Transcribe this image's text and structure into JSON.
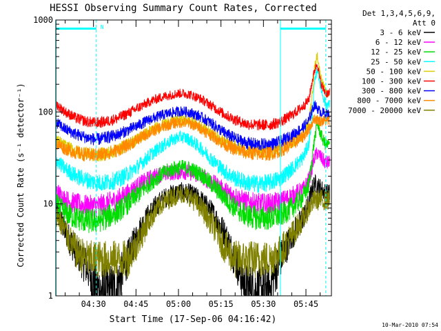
{
  "chart_data": {
    "type": "line",
    "title": "HESSI Observing Summary Count Rates, Corrected",
    "ylabel": "Corrected Count Rate (s⁻¹ detector⁻¹)",
    "xlabel": "Start Time (17-Sep-06 04:16:42)",
    "yscale": "log",
    "ylim": [
      1,
      1000
    ],
    "xlim": [
      "04:16:42",
      "05:54:00"
    ],
    "xticks": [
      "04:30",
      "04:45",
      "05:00",
      "05:15",
      "05:30",
      "05:45"
    ],
    "yticks": [
      "1",
      "10",
      "100",
      "1000"
    ],
    "grid": false,
    "legend_placement": "right",
    "legend_header": [
      "Det 1,3,4,5,6,9,",
      "Att 0"
    ],
    "footer": "10-Mar-2010 07:54",
    "night_bar_label": "N",
    "night_bars": [
      {
        "start": "04:16:42",
        "end": "04:31:00"
      },
      {
        "start": "05:36:00",
        "end": "05:52:00"
      }
    ],
    "series": [
      {
        "name": "3 - 6 keV",
        "color": "#000000",
        "x": [
          "04:16:42",
          "04:20",
          "04:24",
          "04:28",
          "04:31",
          "04:34",
          "04:38",
          "04:42",
          "04:46",
          "04:50",
          "04:54",
          "04:58",
          "05:01",
          "05:04",
          "05:08",
          "05:12",
          "05:16",
          "05:20",
          "05:24",
          "05:28",
          "05:32",
          "05:36",
          "05:40",
          "05:44",
          "05:46",
          "05:47",
          "05:48",
          "05:49",
          "05:50",
          "05:51",
          "05:52"
        ],
        "y": [
          9,
          5,
          3,
          2,
          1.2,
          1.1,
          1.2,
          2.5,
          5,
          8,
          11,
          13,
          13.5,
          13,
          11,
          8,
          5,
          2.5,
          1.2,
          1.1,
          1.2,
          2.5,
          4.5,
          7,
          10,
          14,
          17,
          16,
          15,
          14,
          13
        ]
      },
      {
        "name": "6 - 12 keV",
        "color": "#ff00ff",
        "x": [
          "04:16:42",
          "04:20",
          "04:24",
          "04:28",
          "04:31",
          "04:34",
          "04:38",
          "04:42",
          "04:46",
          "04:50",
          "04:54",
          "04:58",
          "05:01",
          "05:04",
          "05:08",
          "05:12",
          "05:16",
          "05:20",
          "05:24",
          "05:28",
          "05:32",
          "05:36",
          "05:40",
          "05:44",
          "05:46",
          "05:47",
          "05:48",
          "05:49",
          "05:50",
          "05:51",
          "05:52"
        ],
        "y": [
          14,
          11,
          10,
          9.5,
          9.5,
          10,
          11,
          13,
          16,
          19,
          21,
          22,
          22.5,
          22,
          20,
          17,
          14,
          12,
          10.5,
          10,
          10,
          10.5,
          12,
          14,
          18,
          24,
          32,
          36,
          33,
          30,
          28
        ]
      },
      {
        "name": "12 - 25 keV",
        "color": "#00dd00",
        "x": [
          "04:16:42",
          "04:20",
          "04:24",
          "04:28",
          "04:31",
          "04:34",
          "04:38",
          "04:42",
          "04:46",
          "04:50",
          "04:54",
          "04:58",
          "05:01",
          "05:04",
          "05:08",
          "05:12",
          "05:16",
          "05:20",
          "05:24",
          "05:28",
          "05:32",
          "05:36",
          "05:40",
          "05:44",
          "05:46",
          "05:47",
          "05:48",
          "05:49",
          "05:50",
          "05:51",
          "05:52"
        ],
        "y": [
          10,
          8,
          7,
          6.5,
          6.5,
          7,
          8,
          10,
          13,
          17,
          21,
          24,
          25,
          24,
          21,
          16,
          12,
          9,
          7.5,
          7,
          7,
          7.5,
          9,
          12,
          16,
          28,
          50,
          75,
          60,
          50,
          44
        ]
      },
      {
        "name": "25 - 50 keV",
        "color": "#00ffff",
        "x": [
          "04:16:42",
          "04:20",
          "04:24",
          "04:28",
          "04:31",
          "04:34",
          "04:38",
          "04:42",
          "04:46",
          "04:50",
          "04:54",
          "04:58",
          "05:01",
          "05:04",
          "05:08",
          "05:12",
          "05:16",
          "05:20",
          "05:24",
          "05:28",
          "05:32",
          "05:36",
          "05:40",
          "05:44",
          "05:46",
          "05:47",
          "05:48",
          "05:49",
          "05:50",
          "05:51",
          "05:52"
        ],
        "y": [
          30,
          24,
          20,
          18,
          17,
          17,
          18,
          21,
          26,
          34,
          42,
          50,
          54,
          50,
          40,
          30,
          23,
          19,
          17,
          16.5,
          17,
          19,
          24,
          32,
          45,
          80,
          200,
          300,
          200,
          150,
          120
        ]
      },
      {
        "name": "50 - 100 keV",
        "color": "#ddcc00",
        "x": [
          "04:16:42",
          "04:20",
          "04:24",
          "04:28",
          "04:31",
          "04:34",
          "04:38",
          "04:42",
          "04:46",
          "04:50",
          "04:54",
          "04:58",
          "05:01",
          "05:04",
          "05:08",
          "05:12",
          "05:16",
          "05:20",
          "05:24",
          "05:28",
          "05:32",
          "05:36",
          "05:40",
          "05:44",
          "05:46",
          "05:47",
          "05:48",
          "05:49",
          "05:50",
          "05:51",
          "05:52"
        ],
        "y": [
          50,
          42,
          37,
          35,
          34,
          35,
          38,
          44,
          52,
          62,
          72,
          80,
          82,
          80,
          70,
          58,
          48,
          42,
          38,
          37,
          37,
          40,
          46,
          58,
          75,
          130,
          300,
          420,
          260,
          200,
          160
        ]
      },
      {
        "name": "100 - 300 keV",
        "color": "#ff0000",
        "x": [
          "04:16:42",
          "04:20",
          "04:24",
          "04:28",
          "04:31",
          "04:34",
          "04:38",
          "04:42",
          "04:46",
          "04:50",
          "04:54",
          "04:58",
          "05:01",
          "05:04",
          "05:08",
          "05:12",
          "05:16",
          "05:20",
          "05:24",
          "05:28",
          "05:32",
          "05:36",
          "05:40",
          "05:44",
          "05:46",
          "05:47",
          "05:48",
          "05:49",
          "05:50",
          "05:51",
          "05:52"
        ],
        "y": [
          122,
          100,
          85,
          78,
          76,
          78,
          84,
          96,
          112,
          130,
          145,
          155,
          160,
          155,
          138,
          115,
          95,
          82,
          74,
          72,
          72,
          78,
          92,
          115,
          135,
          200,
          280,
          340,
          220,
          180,
          160
        ]
      },
      {
        "name": "300 - 800 keV",
        "color": "#0000ff",
        "x": [
          "04:16:42",
          "04:20",
          "04:24",
          "04:28",
          "04:31",
          "04:34",
          "04:38",
          "04:42",
          "04:46",
          "04:50",
          "04:54",
          "04:58",
          "05:01",
          "05:04",
          "05:08",
          "05:12",
          "05:16",
          "05:20",
          "05:24",
          "05:28",
          "05:32",
          "05:36",
          "05:40",
          "05:44",
          "05:46",
          "05:47",
          "05:48",
          "05:49",
          "05:50",
          "05:51",
          "05:52"
        ],
        "y": [
          78,
          65,
          57,
          52,
          50,
          52,
          56,
          63,
          72,
          83,
          92,
          99,
          102,
          99,
          88,
          74,
          60,
          51,
          46,
          44,
          44,
          47,
          55,
          68,
          80,
          100,
          120,
          110,
          100,
          98,
          95
        ]
      },
      {
        "name": "800 - 7000 keV",
        "color": "#ff8800",
        "x": [
          "04:16:42",
          "04:20",
          "04:24",
          "04:28",
          "04:31",
          "04:34",
          "04:38",
          "04:42",
          "04:46",
          "04:50",
          "04:54",
          "04:58",
          "05:01",
          "05:04",
          "05:08",
          "05:12",
          "05:16",
          "05:20",
          "05:24",
          "05:28",
          "05:32",
          "05:36",
          "05:40",
          "05:44",
          "05:46",
          "05:47",
          "05:48",
          "05:49",
          "05:50",
          "05:51",
          "05:52"
        ],
        "y": [
          46,
          40,
          36,
          34,
          34,
          35,
          38,
          43,
          51,
          60,
          68,
          75,
          77,
          75,
          66,
          55,
          45,
          39,
          36,
          35,
          35,
          38,
          44,
          54,
          64,
          75,
          85,
          82,
          80,
          80,
          80
        ]
      },
      {
        "name": "7000 - 20000 keV",
        "color": "#808000",
        "x": [
          "04:16:42",
          "04:20",
          "04:24",
          "04:28",
          "04:31",
          "04:34",
          "04:38",
          "04:42",
          "04:46",
          "04:50",
          "04:54",
          "04:58",
          "05:01",
          "05:04",
          "05:08",
          "05:12",
          "05:16",
          "05:20",
          "05:24",
          "05:28",
          "05:32",
          "05:36",
          "05:40",
          "05:44",
          "05:46",
          "05:47",
          "05:48",
          "05:49",
          "05:50",
          "05:51",
          "05:52"
        ],
        "y": [
          8,
          5,
          3,
          2.5,
          2.5,
          2.5,
          2.5,
          2.5,
          4,
          7,
          10,
          12,
          13,
          12,
          9,
          6,
          3.5,
          2.5,
          2.5,
          2.5,
          2.5,
          3,
          4.5,
          7,
          9,
          10,
          11,
          11,
          11,
          11,
          11
        ]
      }
    ]
  }
}
